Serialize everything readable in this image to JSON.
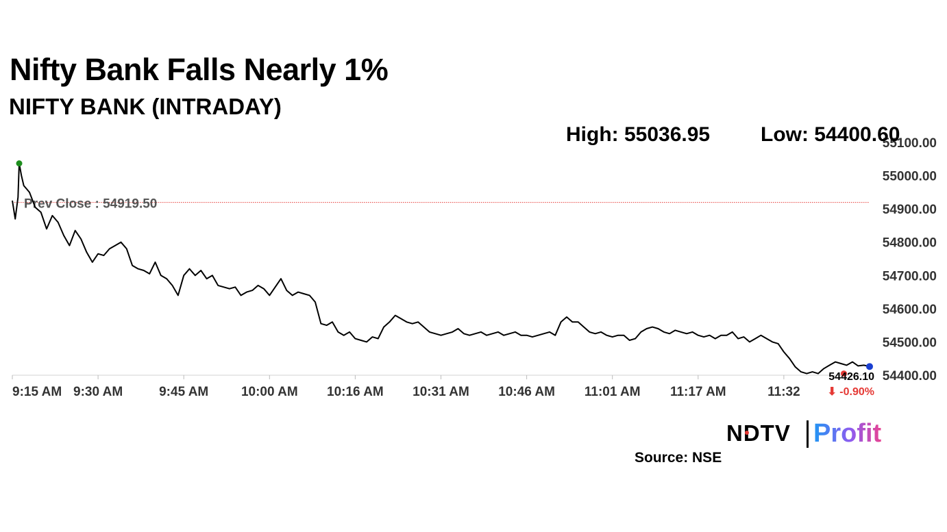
{
  "header": {
    "title": "Nifty Bank Falls Nearly 1%",
    "subtitle": "NIFTY BANK (INTRADAY)",
    "high_label": "High: 55036.95",
    "low_label": "Low: 54400.60"
  },
  "footer": {
    "logo_ndtv": "NDTV",
    "logo_profit": "Profit",
    "source": "Source: NSE"
  },
  "colors": {
    "line": "#000000",
    "prev_close": "#e53935",
    "high_marker": "#1e8e1e",
    "low_marker": "#e53935",
    "last_marker": "#1a3fd1",
    "change": "#e53935"
  },
  "chart_data": {
    "type": "line",
    "title": "NIFTY BANK (INTRADAY)",
    "xlabel": "",
    "ylabel": "",
    "ylim": [
      54400,
      55100
    ],
    "xlim": [
      0,
      150
    ],
    "y_ticks": [
      54400,
      54500,
      54600,
      54700,
      54800,
      54900,
      55000,
      55100
    ],
    "y_tick_labels": [
      "54400.00",
      "54500.00",
      "54600.00",
      "54700.00",
      "54800.00",
      "54900.00",
      "55000.00",
      "55100.00"
    ],
    "x_ticks": [
      0,
      15,
      30,
      45,
      60,
      75,
      90,
      105,
      120,
      135
    ],
    "x_tick_labels": [
      "9:15 AM",
      "9:30 AM",
      "9:45 AM",
      "10:00 AM",
      "10:16 AM",
      "10:31 AM",
      "10:46 AM",
      "11:01 AM",
      "11:17 AM",
      "11:32"
    ],
    "prev_close": 54919.5,
    "prev_close_label": "Prev Close : 54919.50",
    "high": 55036.95,
    "low": 54400.6,
    "last_value": 54426.1,
    "last_label": "54426.10",
    "change_label": "⬇ -0.90%",
    "high_point": {
      "x": 1.2,
      "y": 55036.95
    },
    "low_point": {
      "x": 145.5,
      "y": 54405
    },
    "last_point": {
      "x": 150,
      "y": 54426.1
    },
    "x": [
      0,
      0.5,
      1,
      1.2,
      1.6,
      2,
      2.5,
      3,
      4,
      5,
      6,
      7,
      8,
      9,
      10,
      11,
      12,
      13,
      14,
      15,
      16,
      17,
      18,
      19,
      20,
      21,
      22,
      23,
      24,
      25,
      26,
      27,
      28,
      29,
      30,
      31,
      32,
      33,
      34,
      35,
      36,
      37,
      38,
      39,
      40,
      41,
      42,
      43,
      44,
      45,
      46,
      47,
      48,
      49,
      50,
      51,
      52,
      53,
      54,
      55,
      56,
      57,
      58,
      59,
      60,
      61,
      62,
      63,
      64,
      65,
      66,
      67,
      68,
      69,
      70,
      71,
      72,
      73,
      74,
      75,
      76,
      77,
      78,
      79,
      80,
      81,
      82,
      83,
      84,
      85,
      86,
      87,
      88,
      89,
      90,
      91,
      92,
      93,
      94,
      95,
      96,
      97,
      98,
      99,
      100,
      101,
      102,
      103,
      104,
      105,
      106,
      107,
      108,
      109,
      110,
      111,
      112,
      113,
      114,
      115,
      116,
      117,
      118,
      119,
      120,
      121,
      122,
      123,
      124,
      125,
      126,
      127,
      128,
      129,
      130,
      131,
      132,
      133,
      134,
      135,
      136,
      137,
      138,
      139,
      140,
      141,
      142,
      143,
      144,
      145,
      146,
      147,
      148,
      149,
      150
    ],
    "values": [
      54925,
      54870,
      54935,
      55036.95,
      55000,
      54970,
      54960,
      54950,
      54905,
      54890,
      54840,
      54880,
      54860,
      54820,
      54790,
      54835,
      54810,
      54770,
      54740,
      54765,
      54760,
      54780,
      54790,
      54800,
      54780,
      54730,
      54720,
      54715,
      54705,
      54740,
      54700,
      54690,
      54670,
      54640,
      54700,
      54720,
      54700,
      54715,
      54690,
      54700,
      54670,
      54665,
      54660,
      54665,
      54640,
      54650,
      54655,
      54670,
      54660,
      54640,
      54665,
      54690,
      54655,
      54640,
      54650,
      54645,
      54640,
      54620,
      54555,
      54550,
      54560,
      54530,
      54520,
      54530,
      54510,
      54505,
      54500,
      54515,
      54510,
      54545,
      54560,
      54580,
      54570,
      54560,
      54555,
      54560,
      54545,
      54530,
      54525,
      54520,
      54525,
      54530,
      54540,
      54525,
      54520,
      54525,
      54530,
      54520,
      54525,
      54530,
      54520,
      54525,
      54530,
      54520,
      54520,
      54515,
      54520,
      54525,
      54530,
      54520,
      54560,
      54575,
      54560,
      54560,
      54545,
      54530,
      54525,
      54530,
      54520,
      54515,
      54520,
      54520,
      54505,
      54510,
      54530,
      54540,
      54545,
      54540,
      54530,
      54525,
      54535,
      54530,
      54525,
      54530,
      54520,
      54515,
      54520,
      54510,
      54520,
      54520,
      54530,
      54510,
      54515,
      54500,
      54510,
      54520,
      54510,
      54500,
      54495,
      54470,
      54450,
      54425,
      54410,
      54405,
      54410,
      54405,
      54420,
      54430,
      54440,
      54435,
      54430,
      54440,
      54428,
      54430,
      54426.1
    ]
  }
}
